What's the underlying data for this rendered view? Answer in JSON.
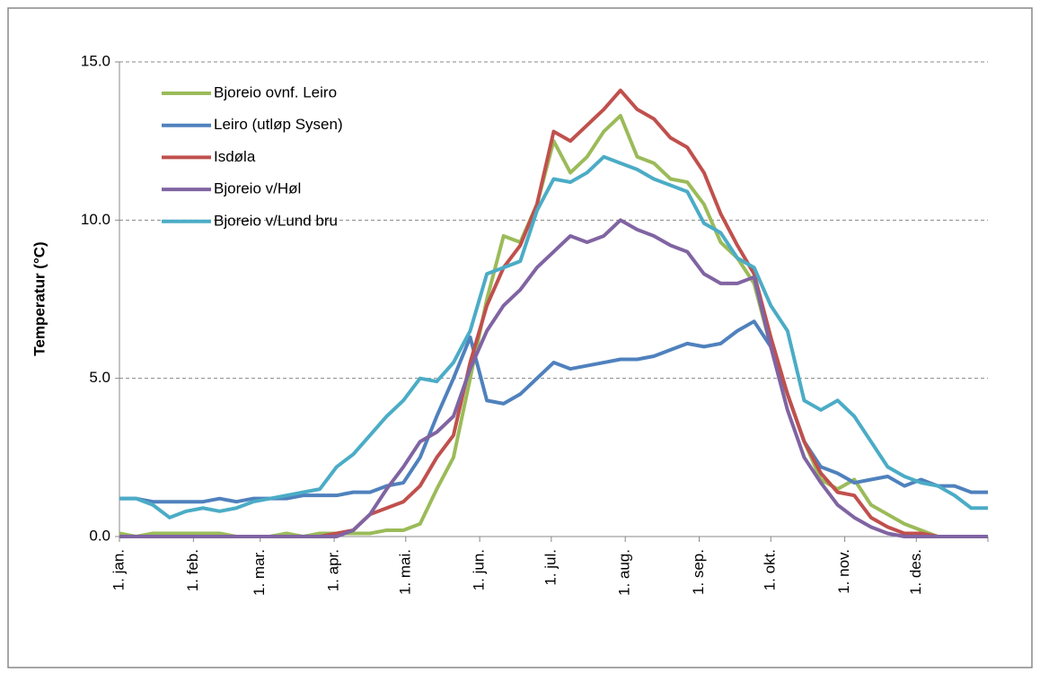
{
  "chart_data": {
    "type": "line",
    "y_label": "Temperatur (°C)",
    "x": [
      1,
      8,
      15,
      22,
      29,
      36,
      43,
      50,
      57,
      64,
      71,
      78,
      85,
      92,
      99,
      106,
      113,
      120,
      127,
      134,
      141,
      148,
      155,
      162,
      169,
      176,
      183,
      190,
      197,
      204,
      211,
      218,
      225,
      232,
      239,
      246,
      253,
      260,
      267,
      274,
      281,
      288,
      295,
      302,
      309,
      316,
      323,
      330,
      337,
      344,
      351,
      358,
      365
    ],
    "xlim": [
      1,
      365
    ],
    "xticks": [
      {
        "value": 1,
        "label": "1. jan."
      },
      {
        "value": 32,
        "label": "1. feb."
      },
      {
        "value": 60,
        "label": "1. mar."
      },
      {
        "value": 91,
        "label": "1. apr."
      },
      {
        "value": 121,
        "label": "1. mai."
      },
      {
        "value": 152,
        "label": "1. jun."
      },
      {
        "value": 182,
        "label": "1. jul."
      },
      {
        "value": 213,
        "label": "1. aug."
      },
      {
        "value": 244,
        "label": "1. sep."
      },
      {
        "value": 274,
        "label": "1. okt."
      },
      {
        "value": 305,
        "label": "1. nov."
      },
      {
        "value": 335,
        "label": "1. des."
      }
    ],
    "ylim": [
      0,
      15
    ],
    "yticks": [
      {
        "value": 0,
        "label": "0.0"
      },
      {
        "value": 5,
        "label": "5.0"
      },
      {
        "value": 10,
        "label": "10.0"
      },
      {
        "value": 15,
        "label": "15.0"
      }
    ],
    "grid": true,
    "legend": "top-left",
    "series": [
      {
        "name": "Bjoreio ovnf. Leiro",
        "color": "#9bbb59",
        "values": [
          0.1,
          0.0,
          0.1,
          0.1,
          0.1,
          0.1,
          0.1,
          0.0,
          0.0,
          0.0,
          0.1,
          0.0,
          0.1,
          0.1,
          0.1,
          0.1,
          0.2,
          0.2,
          0.4,
          1.5,
          2.5,
          5.0,
          7.5,
          9.5,
          9.3,
          10.5,
          12.5,
          11.5,
          12.0,
          12.8,
          13.3,
          12.0,
          11.8,
          11.3,
          11.2,
          10.5,
          9.3,
          8.8,
          8.0,
          6.0,
          4.5,
          3.0,
          1.8,
          1.5,
          1.8,
          1.0,
          0.7,
          0.4,
          0.2,
          0.0,
          0.0,
          0.0,
          0.0
        ]
      },
      {
        "name": "Leiro (utløp Sysen)",
        "color": "#4f81bd",
        "values": [
          1.2,
          1.2,
          1.1,
          1.1,
          1.1,
          1.1,
          1.2,
          1.1,
          1.2,
          1.2,
          1.2,
          1.3,
          1.3,
          1.3,
          1.4,
          1.4,
          1.6,
          1.7,
          2.5,
          3.8,
          5.0,
          6.3,
          4.3,
          4.2,
          4.5,
          5.0,
          5.5,
          5.3,
          5.4,
          5.5,
          5.6,
          5.6,
          5.7,
          5.9,
          6.1,
          6.0,
          6.1,
          6.5,
          6.8,
          6.0,
          4.5,
          3.0,
          2.2,
          2.0,
          1.7,
          1.8,
          1.9,
          1.6,
          1.8,
          1.6,
          1.6,
          1.4,
          1.4
        ]
      },
      {
        "name": "Isdøla",
        "color": "#c0504d",
        "values": [
          0,
          0,
          0,
          0,
          0,
          0,
          0,
          0,
          0,
          0,
          0,
          0,
          0,
          0.1,
          0.2,
          0.7,
          0.9,
          1.1,
          1.6,
          2.5,
          3.2,
          5.5,
          7.3,
          8.5,
          9.2,
          10.5,
          12.8,
          12.5,
          13.0,
          13.5,
          14.1,
          13.5,
          13.2,
          12.6,
          12.3,
          11.5,
          10.2,
          9.2,
          8.3,
          6.3,
          4.5,
          3.0,
          2.0,
          1.4,
          1.3,
          0.6,
          0.3,
          0.1,
          0.1,
          0,
          0,
          0,
          0
        ]
      },
      {
        "name": "Bjoreio v/Høl",
        "color": "#8064a2",
        "values": [
          0,
          0,
          0,
          0,
          0,
          0,
          0,
          0,
          0,
          0,
          0,
          0,
          0,
          0,
          0.2,
          0.7,
          1.5,
          2.2,
          3.0,
          3.3,
          3.8,
          5.3,
          6.5,
          7.3,
          7.8,
          8.5,
          9.0,
          9.5,
          9.3,
          9.5,
          10.0,
          9.7,
          9.5,
          9.2,
          9.0,
          8.3,
          8.0,
          8.0,
          8.2,
          6.0,
          4.0,
          2.5,
          1.7,
          1.0,
          0.6,
          0.3,
          0.1,
          0,
          0,
          0,
          0,
          0,
          0
        ]
      },
      {
        "name": "Bjoreio v/Lund bru",
        "color": "#4bacc6",
        "values": [
          1.2,
          1.2,
          1.0,
          0.6,
          0.8,
          0.9,
          0.8,
          0.9,
          1.1,
          1.2,
          1.3,
          1.4,
          1.5,
          2.2,
          2.6,
          3.2,
          3.8,
          4.3,
          5.0,
          4.9,
          5.5,
          6.5,
          8.3,
          8.5,
          8.7,
          10.3,
          11.3,
          11.2,
          11.5,
          12,
          11.8,
          11.6,
          11.3,
          11.1,
          10.9,
          9.9,
          9.6,
          8.8,
          8.5,
          7.3,
          6.5,
          4.3,
          4.0,
          4.3,
          3.8,
          3,
          2.2,
          1.9,
          1.7,
          1.6,
          1.3,
          0.9,
          0.9
        ]
      }
    ]
  }
}
